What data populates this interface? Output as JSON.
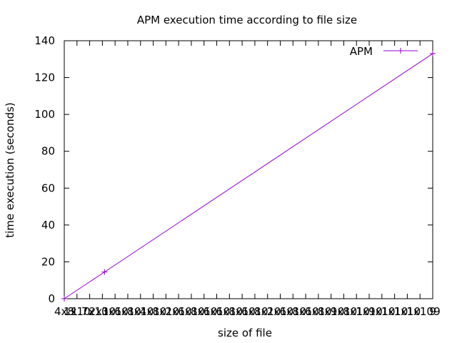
{
  "chart_data": {
    "type": "line",
    "title": "APM execution time according to file size",
    "xlabel": "size of file",
    "ylabel": "time execution (seconds)",
    "x": [
      0,
      1.4,
      12.8
    ],
    "series": [
      {
        "name": "APM",
        "values": [
          0,
          14.5,
          133
        ]
      }
    ],
    "xlim": [
      0,
      12.8
    ],
    "ylim": [
      0,
      140
    ],
    "yticks": [
      "0",
      "20",
      "40",
      "60",
      "80",
      "100",
      "120",
      "140"
    ],
    "xticks": [
      "4x8",
      "1x10",
      "1.7x10",
      "2x10",
      "3x10",
      "6x10",
      "8x10",
      "4x10",
      "8x10",
      "2x10",
      "6x10",
      "8x10",
      "6x10",
      "6x10",
      "8x10",
      "6x10",
      "8x10",
      "2x10",
      "6x10",
      "8x10",
      "6x10",
      "8x10",
      "9x10",
      "8x10",
      "1x10",
      "9x10",
      "1x10",
      "1x10",
      "1x10",
      "9",
      "9"
    ],
    "grid": false,
    "legend_position": "top-right",
    "colors": {
      "series": "#9400d3",
      "axis": "#000000"
    }
  }
}
